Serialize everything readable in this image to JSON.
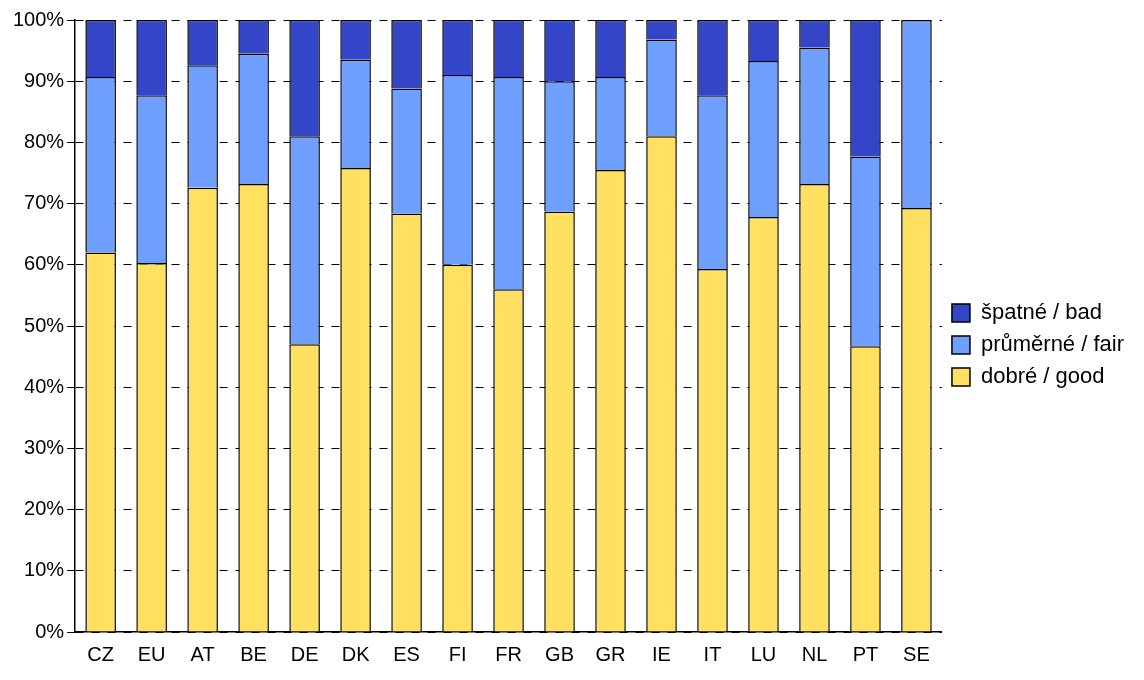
{
  "chart_data": {
    "type": "bar",
    "stacked": true,
    "categories": [
      "CZ",
      "EU",
      "AT",
      "BE",
      "DE",
      "DK",
      "ES",
      "FI",
      "FR",
      "GB",
      "GR",
      "IE",
      "IT",
      "LU",
      "NL",
      "PT",
      "SE"
    ],
    "series": [
      {
        "name": "dobré / good",
        "color": "#ffe060",
        "values": [
          62,
          60.3,
          72.6,
          73.2,
          47,
          75.8,
          68.4,
          60,
          56,
          68.7,
          75.5,
          81,
          59.3,
          67.8,
          73.2,
          46.7,
          69.3
        ]
      },
      {
        "name": "průměrné / fair",
        "color": "#6fa0ff",
        "values": [
          28.7,
          27.4,
          20,
          21.3,
          34,
          17.7,
          20.4,
          31,
          34.7,
          21.3,
          15.2,
          15.8,
          28.4,
          25.5,
          22.3,
          31,
          30.7
        ]
      },
      {
        "name": "špatné / bad",
        "color": "#3446c8",
        "values": [
          9.3,
          12.3,
          7.4,
          5.5,
          19,
          6.5,
          11.2,
          9,
          9.3,
          10,
          9.3,
          3.2,
          12.3,
          6.7,
          4.5,
          22.3,
          0
        ]
      }
    ],
    "ylim": [
      0,
      100
    ],
    "yticks": [
      {
        "value": 0,
        "label": "0%"
      },
      {
        "value": 10,
        "label": "10%"
      },
      {
        "value": 20,
        "label": "20%"
      },
      {
        "value": 30,
        "label": "30%"
      },
      {
        "value": 40,
        "label": "40%"
      },
      {
        "value": 50,
        "label": "50%"
      },
      {
        "value": 60,
        "label": "60%"
      },
      {
        "value": 70,
        "label": "70%"
      },
      {
        "value": 80,
        "label": "80%"
      },
      {
        "value": 90,
        "label": "90%"
      },
      {
        "value": 100,
        "label": "100%"
      }
    ],
    "grid": "y",
    "legend": "right",
    "line_style": "dashed"
  }
}
